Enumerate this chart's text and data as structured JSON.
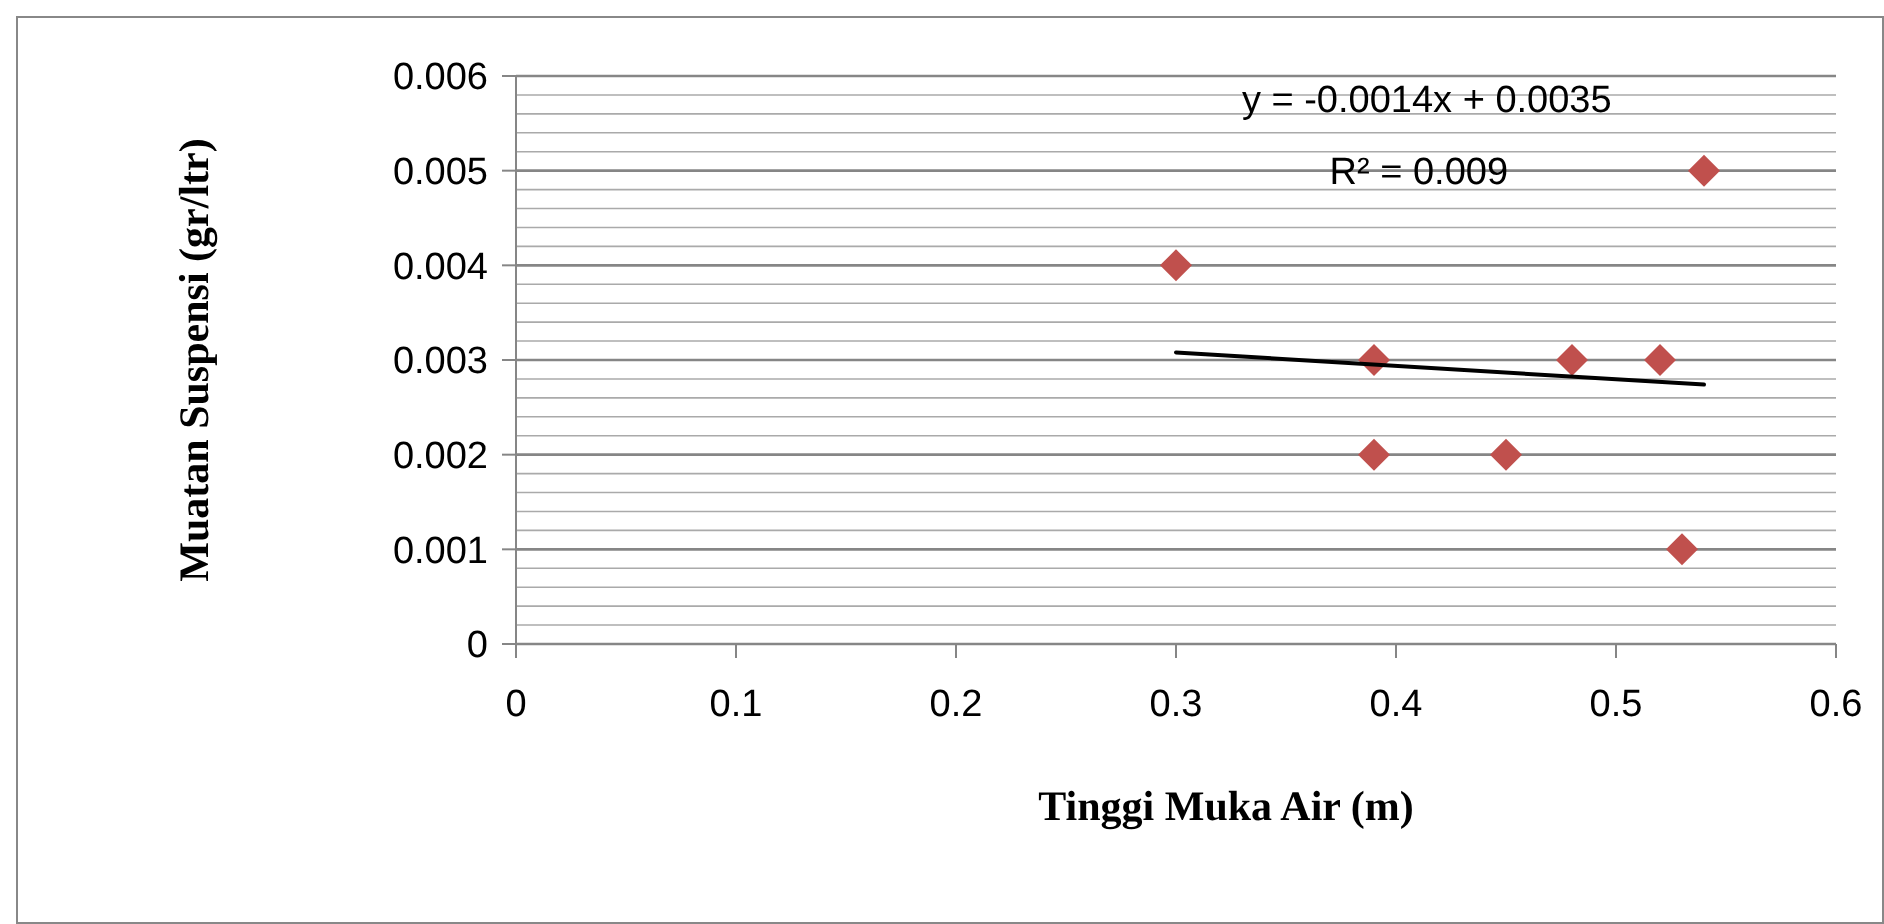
{
  "chart_data": {
    "type": "scatter",
    "xlabel": "Tinggi Muka Air (m)",
    "ylabel": "Muatan Suspensi (gr/ltr)",
    "xlim": [
      0,
      0.6
    ],
    "xticks": [
      0,
      0.1,
      0.2,
      0.3,
      0.4,
      0.5,
      0.6
    ],
    "ylim": [
      0,
      0.006
    ],
    "yticks": [
      0,
      {
        "value": 0.0002,
        "label": null
      },
      {
        "value": 0.0004,
        "label": null
      },
      {
        "value": 0.0006,
        "label": null
      },
      {
        "value": 0.0008,
        "label": null
      },
      0.001,
      {
        "value": 0.0012,
        "label": null
      },
      {
        "value": 0.0014,
        "label": null
      },
      {
        "value": 0.0016,
        "label": null
      },
      {
        "value": 0.0018,
        "label": null
      },
      0.002,
      {
        "value": 0.0022,
        "label": null
      },
      {
        "value": 0.0024,
        "label": null
      },
      {
        "value": 0.0026,
        "label": null
      },
      {
        "value": 0.0028,
        "label": null
      },
      0.003,
      {
        "value": 0.0032,
        "label": null
      },
      {
        "value": 0.0034,
        "label": null
      },
      {
        "value": 0.0036,
        "label": null
      },
      {
        "value": 0.0038,
        "label": null
      },
      0.004,
      {
        "value": 0.0042,
        "label": null
      },
      {
        "value": 0.0044,
        "label": null
      },
      {
        "value": 0.0046,
        "label": null
      },
      {
        "value": 0.0048,
        "label": null
      },
      0.005,
      {
        "value": 0.0052,
        "label": null
      },
      {
        "value": 0.0054,
        "label": null
      },
      {
        "value": 0.0056,
        "label": null
      },
      {
        "value": 0.0058,
        "label": null
      },
      0.006
    ],
    "grid": "y",
    "series": [
      {
        "color": "#c0504d",
        "marker": "diamond",
        "x": [
          0.3,
          0.39,
          0.39,
          0.45,
          0.48,
          0.52,
          0.53,
          0.54
        ],
        "values": [
          0.004,
          0.003,
          0.002,
          0.002,
          0.003,
          0.003,
          0.001,
          0.005
        ]
      },
      {
        "type": "line",
        "color": "#000000",
        "marker": "none",
        "line_style": "solid",
        "x": [
          0.3,
          0.54
        ],
        "values": [
          0.00308,
          0.00274
        ]
      }
    ],
    "annotations": [
      "y = -0.0014x + 0.0035",
      "R² = 0.009"
    ]
  }
}
